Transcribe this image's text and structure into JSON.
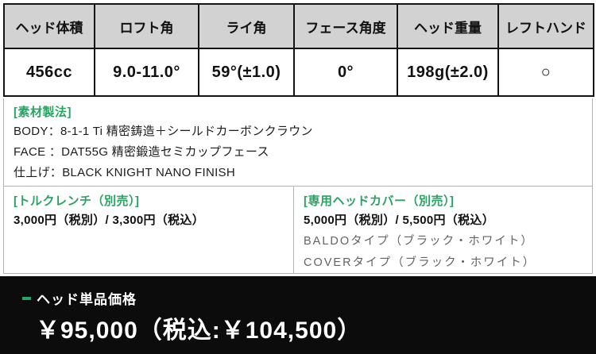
{
  "colors": {
    "accent_green": "#2aa263",
    "header_bg": "#d2d2d2",
    "banner_bg": "#0c0c0c",
    "border_dark": "#141414",
    "border_light": "#b3b3b3"
  },
  "spec_table": {
    "columns": [
      {
        "header": "ヘッド体積",
        "value": "456cc"
      },
      {
        "header": "ロフト角",
        "value": "9.0-11.0°"
      },
      {
        "header": "ライ角",
        "value": "59°(±1.0)"
      },
      {
        "header": "フェース角度",
        "value": "0°"
      },
      {
        "header": "ヘッド重量",
        "value": "198g(±2.0)"
      },
      {
        "header": "レフトハンド",
        "value": "○"
      }
    ]
  },
  "material": {
    "title": "[素材製法]",
    "lines": [
      "BODY：8-1-1 Ti 精密鋳造＋シールドカーボンクラウン",
      "FACE ：DAT55G 精密鍛造セミカップフェース",
      "仕上げ：BLACK KNIGHT NANO FINISH"
    ]
  },
  "torque_wrench": {
    "title": "[トルクレンチ（別売）]",
    "price": "3,000円（税別）/ 3,300円（税込）"
  },
  "head_cover": {
    "title": "[専用ヘッドカバー（別売）]",
    "price": "5,000円（税別）/ 5,500円（税込）",
    "variants": [
      "BALDOタイプ（ブラック・ホワイト）",
      "COVERタイプ（ブラック・ホワイト）"
    ]
  },
  "price_banner": {
    "label": "ヘッド単品価格",
    "price": "￥95,000（税込:￥104,500）"
  }
}
